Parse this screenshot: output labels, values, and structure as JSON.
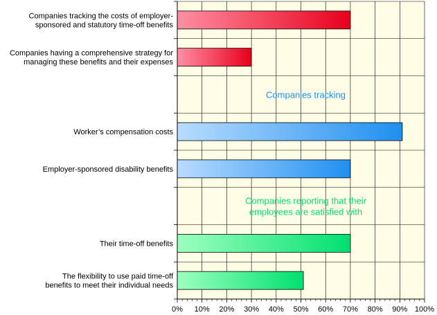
{
  "chart_data": {
    "type": "bar",
    "orientation": "horizontal",
    "xlim": [
      0,
      100
    ],
    "x_ticks": [
      "0%",
      "10%",
      "20%",
      "30%",
      "40%",
      "50%",
      "60%",
      "70%",
      "80%",
      "90%",
      "100%"
    ],
    "grid": true,
    "categories": [
      [
        "Companies tracking the costs of employer-",
        "sponsored and statutory time-off benefits"
      ],
      [
        "Companies having a comprehensive strategy for",
        "managing these benefits and their expenses"
      ],
      [],
      [
        "Worker’s compensation costs"
      ],
      [
        "Employer-sponsored disability benefits"
      ],
      [],
      [
        "Their time-off benefits"
      ],
      [
        "The flexibility to use paid time-off",
        "benefits to meet their individual needs"
      ]
    ],
    "values": [
      70,
      30,
      null,
      91,
      70,
      null,
      70,
      51
    ],
    "bar_colors": [
      "red",
      "red",
      null,
      "blue",
      "blue",
      null,
      "green",
      "green"
    ],
    "colors": {
      "red": [
        "#ff8fa3",
        "#e8001c"
      ],
      "blue": [
        "#b9dcff",
        "#1f8ff0"
      ],
      "green": [
        "#9effbf",
        "#00e070"
      ],
      "plot_background": "#fffde6",
      "annotation_blue": "#1e90ff",
      "annotation_green": "#00e070"
    },
    "annotations": [
      {
        "row": 2,
        "lines": [
          "Companies tracking"
        ],
        "color": "annotation_blue"
      },
      {
        "row": 5,
        "lines": [
          "Companies reporting that their",
          "employees are satisfied with"
        ],
        "color": "annotation_green"
      }
    ]
  }
}
